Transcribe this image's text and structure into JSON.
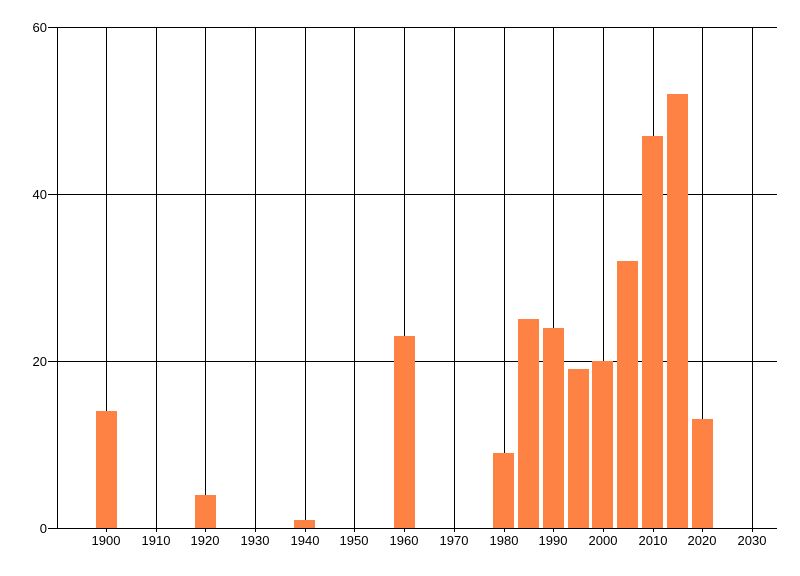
{
  "chart": {
    "background_color": "#ffffff",
    "bar_color": "#fd8244",
    "grid_color": "#000000",
    "label_color": "#000000",
    "x_tick_labels": [
      "1900",
      "1910",
      "1920",
      "1930",
      "1940",
      "1950",
      "1960",
      "1970",
      "1980",
      "1990",
      "2000",
      "2010",
      "2020",
      "2030"
    ],
    "y_tick_labels": [
      "0",
      "20",
      "40",
      "60"
    ]
  },
  "chart_data": {
    "type": "bar",
    "title": "",
    "xlabel": "",
    "ylabel": "",
    "x": [
      1900,
      1920,
      1940,
      1960,
      1980,
      1985,
      1990,
      1995,
      2000,
      2005,
      2010,
      2015,
      2020
    ],
    "values": [
      14,
      4,
      1,
      23,
      9,
      25,
      24,
      19,
      20,
      32,
      47,
      52,
      13
    ],
    "x_ticks": [
      1900,
      1910,
      1920,
      1930,
      1940,
      1950,
      1960,
      1970,
      1980,
      1990,
      2000,
      2010,
      2020,
      2030
    ],
    "y_ticks": [
      0,
      20,
      40,
      60
    ],
    "xlim": [
      1890,
      2035
    ],
    "ylim": [
      0,
      60
    ],
    "grid": "both",
    "legend_position": "none",
    "bar_color": "#fd8244"
  }
}
